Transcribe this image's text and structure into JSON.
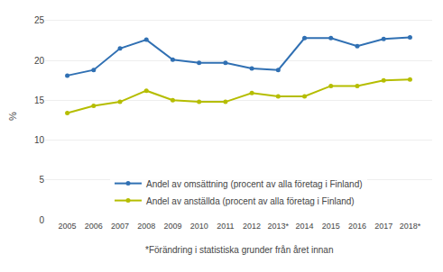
{
  "chart_data": {
    "type": "line",
    "categories": [
      "2005",
      "2006",
      "2007",
      "2008",
      "2009",
      "2010",
      "2011",
      "2012",
      "2013*",
      "2014",
      "2015",
      "2016",
      "2017",
      "2018*"
    ],
    "series": [
      {
        "name": "Andel av omsättning (procent av alla företag i Finland)",
        "color": "#3070b3",
        "values": [
          18.1,
          18.8,
          21.5,
          22.6,
          20.1,
          19.7,
          19.7,
          19.0,
          18.8,
          22.8,
          22.8,
          21.8,
          22.7,
          22.9
        ]
      },
      {
        "name": "Andel av anställda (procent av alla företag i Finland)",
        "color": "#b5bd00",
        "values": [
          13.4,
          14.3,
          14.8,
          16.2,
          15.0,
          14.8,
          14.8,
          15.9,
          15.5,
          15.5,
          16.8,
          16.8,
          17.5,
          17.6
        ]
      }
    ],
    "y_label": "%",
    "annotations": [
      "*Förändring i statistiska grunder från året innan"
    ],
    "ylim": [
      0,
      26
    ],
    "yticks": [
      0,
      5,
      10,
      15,
      20,
      25
    ],
    "grid": true,
    "legend": "lower center",
    "marker": "circle"
  }
}
